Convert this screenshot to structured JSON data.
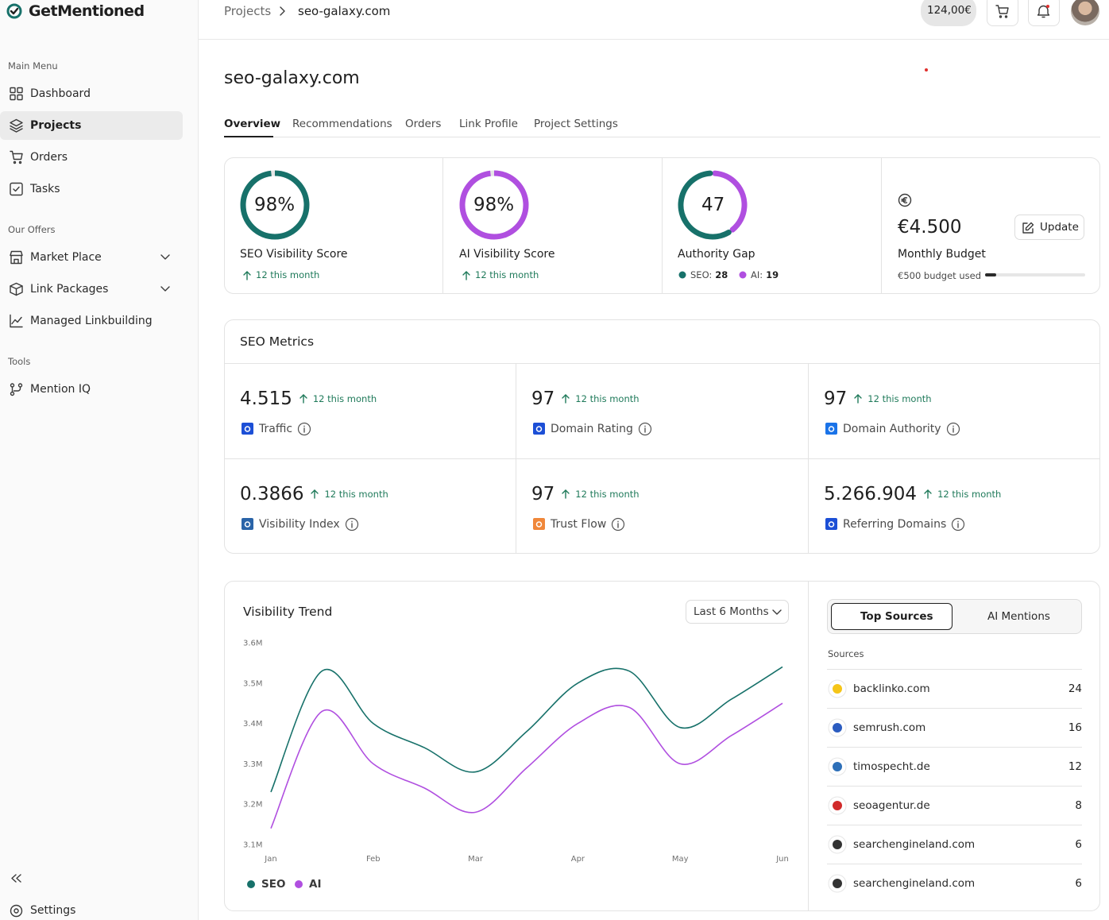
{
  "brand": "GetMentioned",
  "sidebar": {
    "sections": [
      {
        "title": "Main Menu",
        "items": [
          "Dashboard",
          "Projects",
          "Orders",
          "Tasks"
        ]
      },
      {
        "title": "Our Offers",
        "items": [
          "Market Place",
          "Link Packages",
          "Managed Linkbuilding"
        ]
      },
      {
        "title": "Tools",
        "items": [
          "Mention IQ"
        ]
      }
    ],
    "settings": "Settings"
  },
  "breadcrumb": [
    "Projects",
    "seo-galaxy.com"
  ],
  "balance": "124,00€",
  "title": "seo-galaxy.com",
  "tabs": [
    "Overview",
    "Recommendations",
    "Orders",
    "Link Profile",
    "Project Settings"
  ],
  "scores": [
    {
      "label": "SEO Visibility Score",
      "score": 98,
      "score_label": "98%",
      "change": "12 this month",
      "color": "#17716a"
    },
    {
      "label": "AI Visibility Score",
      "score": 98,
      "score_label": "98%",
      "change": "12 this month",
      "color": "#b04fe0"
    }
  ],
  "authority_gap": {
    "label": "Authority Gap",
    "score": 47,
    "parts": [
      {
        "name": "AI:",
        "value": 19,
        "color": "#b04fe0"
      },
      {
        "name": "SEO:",
        "value": 28,
        "color": "#17716a"
      }
    ]
  },
  "budget": {
    "amount": "€4.500",
    "label": "Monthly Budget",
    "used_label": "€500 budget used",
    "used": 500,
    "total": 4500,
    "button": "Update"
  },
  "seo_metrics": {
    "title": "SEO Metrics",
    "items": [
      {
        "value": "4.515",
        "change": "12 this month",
        "label": "Traffic",
        "icon_color": "#1c4fd6"
      },
      {
        "value": "97",
        "change": "12 this month",
        "label": "Domain Rating",
        "icon_color": "#1c4fd6"
      },
      {
        "value": "97",
        "change": "12 this month",
        "label": "Domain Authority",
        "icon_color": "#1a73e8"
      },
      {
        "value": "0.3866",
        "change": "12 this month",
        "label": "Visibility Index",
        "icon_color": "#2a64a8"
      },
      {
        "value": "97",
        "change": "12 this month",
        "label": "Trust Flow",
        "icon_color": "#f0873a"
      },
      {
        "value": "5.266.904",
        "change": "12 this month",
        "label": "Referring Domains",
        "icon_color": "#1c4fd6"
      }
    ]
  },
  "chart_data": {
    "type": "line",
    "title": "Visibility Trend",
    "range": "Last 6 Months",
    "categories": [
      "Jan",
      null,
      "Feb",
      null,
      "Mar",
      null,
      "Apr",
      null,
      "May",
      null,
      "Jun"
    ],
    "series": [
      {
        "name": "SEO",
        "color": "#17716a",
        "values": [
          3.23,
          3.53,
          3.4,
          3.34,
          3.28,
          3.38,
          3.5,
          3.53,
          3.39,
          3.46,
          3.54
        ]
      },
      {
        "name": "AI",
        "color": "#b04fe0",
        "values": [
          3.14,
          3.43,
          3.3,
          3.24,
          3.18,
          3.29,
          3.4,
          3.44,
          3.3,
          3.37,
          3.45
        ]
      }
    ],
    "ylim": [
      3.1,
      3.6
    ],
    "yticks": [
      {
        "value": 3.1,
        "label": "3.1M"
      },
      {
        "value": 3.2,
        "label": "3.2M"
      },
      {
        "value": 3.3,
        "label": "3.3M"
      },
      {
        "value": 3.4,
        "label": "3.4M"
      },
      {
        "value": 3.5,
        "label": "3.5M"
      },
      {
        "value": 3.6,
        "label": "3.6M"
      }
    ],
    "legend": "bottom"
  },
  "sources": {
    "tabs": [
      "Top Sources",
      "AI Mentions"
    ],
    "header": "Sources",
    "rows": [
      {
        "domain": "backlinko.com",
        "count": 24,
        "color": "#f5c518"
      },
      {
        "domain": "semrush.com",
        "count": 16,
        "color": "#2b5cc0"
      },
      {
        "domain": "timospecht.de",
        "count": 12,
        "color": "#2d6fb8"
      },
      {
        "domain": "seoagentur.de",
        "count": 8,
        "color": "#d12a2a"
      },
      {
        "domain": "searchengineland.com",
        "count": 6,
        "color": "#333333"
      },
      {
        "domain": "searchengineland.com",
        "count": 6,
        "color": "#333333"
      }
    ]
  }
}
